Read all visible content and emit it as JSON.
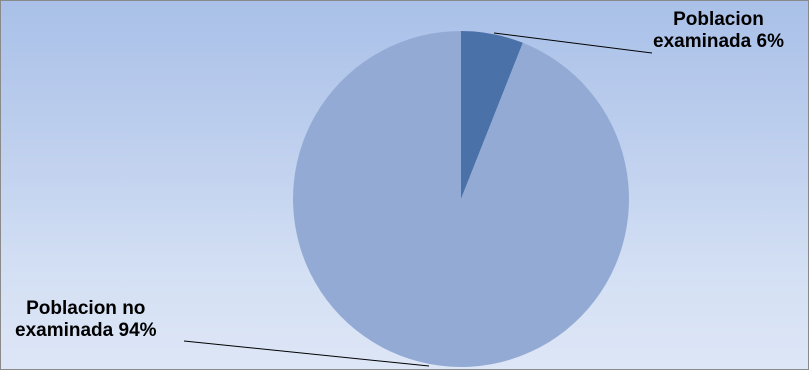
{
  "chart_data": {
    "type": "pie",
    "slices": [
      {
        "label_line1": "Poblacion",
        "label_line2": "examinada 6%",
        "value": 6,
        "color": "#4a72a8"
      },
      {
        "label_line1": "Poblacion no",
        "label_line2": "examinada 94%",
        "value": 94,
        "color": "#93abd4"
      }
    ],
    "start_angle_deg": 0,
    "direction": "clockwise",
    "legend": "none",
    "data_labels": "outside-with-leader-lines"
  },
  "colors": {
    "background_top": "#a9c0e8",
    "background_bottom": "#dde6f6",
    "border": "#8a8a8a",
    "leader_line": "#000000"
  }
}
